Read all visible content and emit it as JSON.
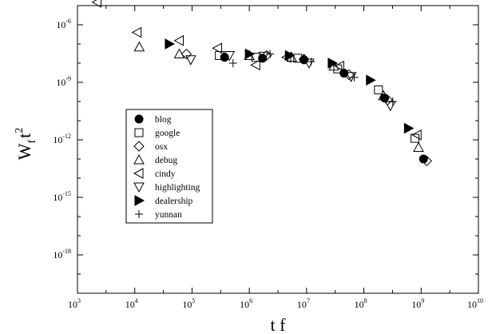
{
  "chart_data": {
    "type": "scatter",
    "title": "",
    "xlabel": "t f",
    "ylabel": {
      "base": "W",
      "sub": "f",
      "sup_var": "t",
      "sup_exp": "2"
    },
    "x_scale": "log",
    "y_scale": "log",
    "xlim": [
      1000,
      10000000000
    ],
    "ylim": [
      1e-20,
      1e-05
    ],
    "x_ticks": [
      {
        "value": 1000,
        "base": "10",
        "exp": "3"
      },
      {
        "value": 10000,
        "base": "10",
        "exp": "4"
      },
      {
        "value": 100000,
        "base": "10",
        "exp": "5"
      },
      {
        "value": 1000000,
        "base": "10",
        "exp": "6"
      },
      {
        "value": 10000000,
        "base": "10",
        "exp": "7"
      },
      {
        "value": 100000000,
        "base": "10",
        "exp": "8"
      },
      {
        "value": 1000000000,
        "base": "10",
        "exp": "9"
      },
      {
        "value": 10000000000,
        "base": "10",
        "exp": "10"
      }
    ],
    "y_ticks": [
      {
        "value": 1e-06,
        "base": "10",
        "exp": "-6"
      },
      {
        "value": 1e-09,
        "base": "10",
        "exp": "-9"
      },
      {
        "value": 1e-12,
        "base": "10",
        "exp": "-12"
      },
      {
        "value": 1e-15,
        "base": "10",
        "exp": "-15"
      },
      {
        "value": 1e-18,
        "base": "10",
        "exp": "-18"
      }
    ],
    "grid": false,
    "legend_position": "middle-left",
    "series": [
      {
        "name": "blog",
        "marker": "circle-filled",
        "points": [
          [
            370000,
            2e-08
          ],
          [
            1700000,
            1.8e-08
          ],
          [
            9000000,
            1.5e-08
          ],
          [
            45000000,
            3e-09
          ],
          [
            230000000,
            1.5e-10
          ],
          [
            1100000000,
            1e-13
          ]
        ]
      },
      {
        "name": "google",
        "marker": "square-open",
        "points": [
          [
            300000,
            2.5e-08
          ],
          [
            1300000,
            2e-08
          ],
          [
            7000000,
            1.8e-08
          ],
          [
            35000000,
            5e-09
          ],
          [
            180000000,
            4e-10
          ],
          [
            780000000,
            1.2e-12
          ]
        ]
      },
      {
        "name": "osx",
        "marker": "diamond-open",
        "points": [
          [
            80000,
            3e-08
          ],
          [
            2000000,
            2.5e-08
          ],
          [
            9000000,
            1.6e-08
          ],
          [
            55000000,
            2.5e-09
          ],
          [
            260000000,
            1.2e-10
          ],
          [
            1250000000,
            8e-14
          ]
        ]
      },
      {
        "name": "debug",
        "marker": "triangle-up-open",
        "points": [
          [
            12000,
            7e-08
          ],
          [
            60000,
            3e-08
          ],
          [
            1000000,
            2.5e-08
          ],
          [
            5500000,
            2e-08
          ],
          [
            30000000,
            7e-09
          ],
          [
            220000000,
            2e-10
          ],
          [
            900000000,
            4e-13
          ]
        ]
      },
      {
        "name": "cindy",
        "marker": "triangle-left-open",
        "points": [
          [
            2200,
            1.5e-05
          ],
          [
            11000,
            4e-07
          ],
          [
            60000,
            1.5e-07
          ],
          [
            280000,
            6e-08
          ],
          [
            1300000,
            8e-09
          ],
          [
            4500000,
            2e-08
          ],
          [
            38000000,
            7e-09
          ],
          [
            850000000,
            1.8e-12
          ]
        ]
      },
      {
        "name": "highlighting",
        "marker": "triangle-down-open",
        "points": [
          [
            95000,
            1.5e-08
          ],
          [
            450000,
            2.5e-08
          ],
          [
            1800000,
            2.3e-08
          ],
          [
            11000000,
            1e-08
          ],
          [
            60000000,
            2e-09
          ],
          [
            290000000,
            6e-11
          ]
        ]
      },
      {
        "name": "dealership",
        "marker": "triangle-right-filled",
        "points": [
          [
            40000,
            1e-07
          ],
          [
            1000000,
            3e-08
          ],
          [
            5000000,
            2.5e-08
          ],
          [
            28000000,
            1e-08
          ],
          [
            130000000,
            1.3e-09
          ],
          [
            600000000,
            4e-12
          ]
        ]
      },
      {
        "name": "yunnan",
        "marker": "plus",
        "points": [
          [
            520000,
            1e-08
          ],
          [
            2300000,
            3e-08
          ],
          [
            12000000,
            1.2e-08
          ],
          [
            68000000,
            1.8e-09
          ],
          [
            320000000,
            1e-10
          ]
        ]
      }
    ]
  }
}
